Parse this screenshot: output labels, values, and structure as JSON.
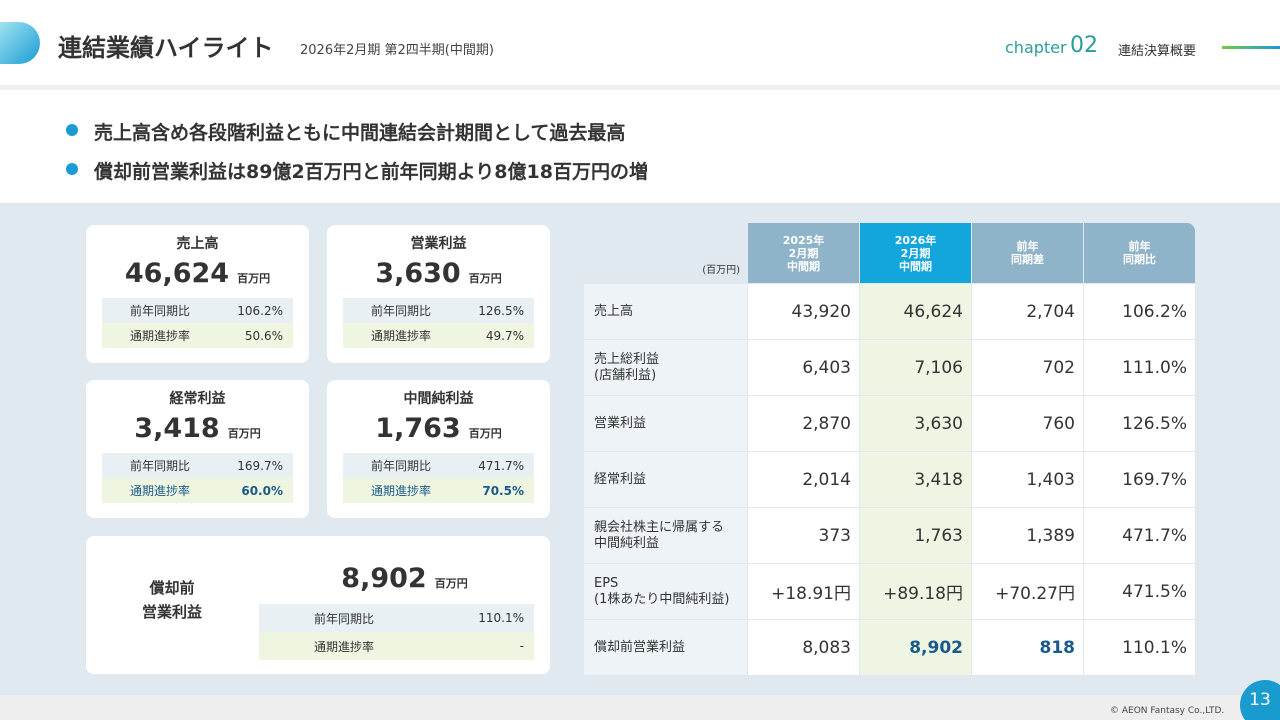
{
  "header": {
    "title": "連結業績ハイライト",
    "subtitle": "2026年2月期 第2四半期(中間期)",
    "chapter_label": "chapter",
    "chapter_number": "02",
    "section": "連結決算概要"
  },
  "bullets": [
    "売上高含め各段階利益ともに中間連結会計期間として過去最高",
    "償却前営業利益は89億2百万円と前年同期より8億18百万円の増"
  ],
  "cards": [
    {
      "title_lines": [
        "売上高"
      ],
      "value": "46,624",
      "unit": "百万円",
      "rows": [
        {
          "label": "前年同期比",
          "value": "106.2%",
          "highlight": false
        },
        {
          "label": "通期進捗率",
          "value": "50.6%",
          "highlight": false
        }
      ]
    },
    {
      "title_lines": [
        "営業利益"
      ],
      "value": "3,630",
      "unit": "百万円",
      "rows": [
        {
          "label": "前年同期比",
          "value": "126.5%",
          "highlight": false
        },
        {
          "label": "通期進捗率",
          "value": "49.7%",
          "highlight": false
        }
      ]
    },
    {
      "title_lines": [
        "経常利益"
      ],
      "value": "3,418",
      "unit": "百万円",
      "rows": [
        {
          "label": "前年同期比",
          "value": "169.7%",
          "highlight": false
        },
        {
          "label": "通期進捗率",
          "value": "60.0%",
          "highlight": true
        }
      ]
    },
    {
      "title_lines": [
        "中間純利益"
      ],
      "value": "1,763",
      "unit": "百万円",
      "rows": [
        {
          "label": "前年同期比",
          "value": "471.7%",
          "highlight": false
        },
        {
          "label": "通期進捗率",
          "value": "70.5%",
          "highlight": true
        }
      ]
    },
    {
      "title_lines": [
        "償却前",
        "営業利益"
      ],
      "value": "8,902",
      "unit": "百万円",
      "rows": [
        {
          "label": "前年同期比",
          "value": "110.1%",
          "highlight": false
        },
        {
          "label": "通期進捗率",
          "value": "-",
          "highlight": false
        }
      ]
    }
  ],
  "table": {
    "unit": "(百万円)",
    "columns": [
      [
        "2025年",
        "2月期",
        "中間期"
      ],
      [
        "2026年",
        "2月期",
        "中間期"
      ],
      [
        "前年",
        "同期差"
      ],
      [
        "前年",
        "同期比"
      ]
    ],
    "rows": [
      {
        "label_lines": [
          "売上高"
        ],
        "values": [
          "43,920",
          "46,624",
          "2,704",
          "106.2%"
        ],
        "emphasis": [
          false,
          false,
          false,
          false
        ]
      },
      {
        "label_lines": [
          "売上総利益",
          "(店舗利益)"
        ],
        "values": [
          "6,403",
          "7,106",
          "702",
          "111.0%"
        ],
        "emphasis": [
          false,
          false,
          false,
          false
        ]
      },
      {
        "label_lines": [
          "営業利益"
        ],
        "values": [
          "2,870",
          "3,630",
          "760",
          "126.5%"
        ],
        "emphasis": [
          false,
          false,
          false,
          false
        ]
      },
      {
        "label_lines": [
          "経常利益"
        ],
        "values": [
          "2,014",
          "3,418",
          "1,403",
          "169.7%"
        ],
        "emphasis": [
          false,
          false,
          false,
          false
        ]
      },
      {
        "label_lines": [
          "親会社株主に帰属する",
          "中間純利益"
        ],
        "values": [
          "373",
          "1,763",
          "1,389",
          "471.7%"
        ],
        "emphasis": [
          false,
          false,
          false,
          false
        ]
      },
      {
        "label_lines": [
          "EPS",
          "(1株あたり中間純利益)"
        ],
        "values": [
          "+18.91円",
          "+89.18円",
          "+70.27円",
          "471.5%"
        ],
        "emphasis": [
          false,
          false,
          false,
          false
        ]
      },
      {
        "label_lines": [
          "償却前営業利益"
        ],
        "values": [
          "8,083",
          "8,902",
          "818",
          "110.1%"
        ],
        "emphasis": [
          false,
          true,
          true,
          false
        ]
      }
    ]
  },
  "footer": {
    "copyright": "© AEON Fantasy Co.,LTD.",
    "page": "13"
  }
}
